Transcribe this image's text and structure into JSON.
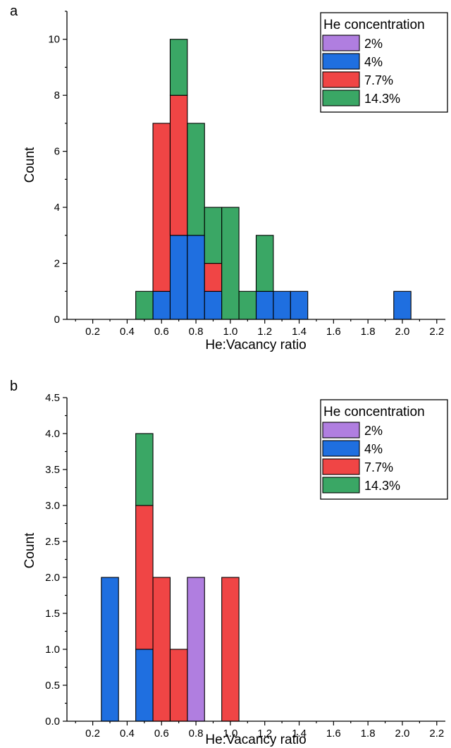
{
  "chart_data": [
    {
      "panel_label": "a",
      "type": "bar",
      "stacked": true,
      "xlabel": "He:Vacancy ratio",
      "ylabel": "Count",
      "xlim": [
        0.05,
        2.25
      ],
      "ylim": [
        0,
        11
      ],
      "bin_width": 0.1,
      "x_ticks": [
        "0.2",
        "0.4",
        "0.6",
        "0.8",
        "1.0",
        "1.2",
        "1.4",
        "1.6",
        "1.8",
        "2.0",
        "2.2"
      ],
      "y_ticks": [
        "0",
        "2",
        "4",
        "6",
        "8",
        "10"
      ],
      "legend_title": "He concentration",
      "legend_position": "top-right",
      "series": [
        {
          "name": "2%",
          "color": "#b07ee0",
          "points": []
        },
        {
          "name": "4%",
          "color": "#1f6fe0",
          "points": [
            [
              0.6,
              1
            ],
            [
              0.7,
              3
            ],
            [
              0.8,
              3
            ],
            [
              0.9,
              1
            ],
            [
              1.2,
              1
            ],
            [
              1.3,
              1
            ],
            [
              1.4,
              1
            ],
            [
              2.0,
              1
            ]
          ]
        },
        {
          "name": "7.7%",
          "color": "#f04545",
          "points": [
            [
              0.6,
              6
            ],
            [
              0.7,
              5
            ],
            [
              0.9,
              1
            ]
          ]
        },
        {
          "name": "14.3%",
          "color": "#3aa765",
          "points": [
            [
              0.5,
              1
            ],
            [
              0.7,
              2
            ],
            [
              0.8,
              4
            ],
            [
              0.9,
              2
            ],
            [
              1.0,
              4
            ],
            [
              1.1,
              1
            ],
            [
              1.2,
              2
            ]
          ]
        }
      ]
    },
    {
      "panel_label": "b",
      "type": "bar",
      "stacked": true,
      "xlabel": "He:Vacancy ratio",
      "ylabel": "Count",
      "xlim": [
        0.05,
        2.25
      ],
      "ylim": [
        0,
        4.5
      ],
      "bin_width": 0.1,
      "x_ticks": [
        "0.2",
        "0.4",
        "0.6",
        "0.8",
        "1.0",
        "1.2",
        "1.4",
        "1.6",
        "1.8",
        "2.0",
        "2.2"
      ],
      "y_ticks": [
        "0.0",
        "0.5",
        "1.0",
        "1.5",
        "2.0",
        "2.5",
        "3.0",
        "3.5",
        "4.0",
        "4.5"
      ],
      "legend_title": "He concentration",
      "legend_position": "top-right",
      "series": [
        {
          "name": "2%",
          "color": "#b07ee0",
          "points": [
            [
              0.8,
              2
            ]
          ]
        },
        {
          "name": "4%",
          "color": "#1f6fe0",
          "points": [
            [
              0.3,
              2
            ],
            [
              0.5,
              1
            ]
          ]
        },
        {
          "name": "7.7%",
          "color": "#f04545",
          "points": [
            [
              0.5,
              2
            ],
            [
              0.6,
              2
            ],
            [
              0.7,
              1
            ],
            [
              1.0,
              2
            ]
          ]
        },
        {
          "name": "14.3%",
          "color": "#3aa765",
          "points": [
            [
              0.5,
              1
            ]
          ]
        }
      ]
    }
  ]
}
